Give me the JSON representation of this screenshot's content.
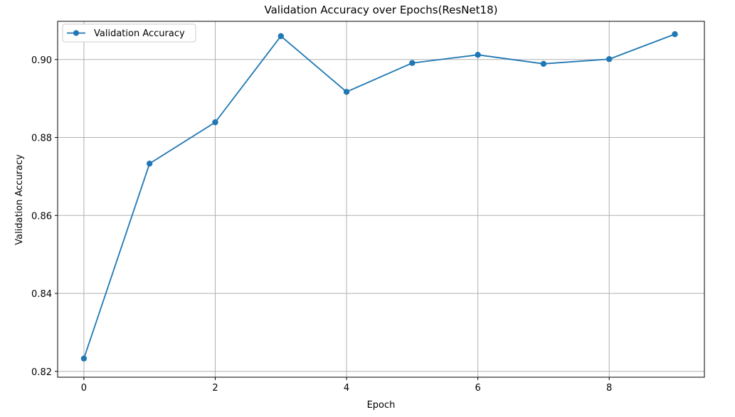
{
  "chart_data": {
    "type": "line",
    "title": "Validation Accuracy over Epochs(ResNet18)",
    "xlabel": "Epoch",
    "ylabel": "Validation Accuracy",
    "xlim": [
      -0.4,
      9.45
    ],
    "ylim": [
      0.8185,
      0.9098
    ],
    "x_ticks": [
      0,
      2,
      4,
      6,
      8
    ],
    "x_tick_labels": [
      "0",
      "2",
      "4",
      "6",
      "8"
    ],
    "y_ticks": [
      0.82,
      0.84,
      0.86,
      0.88,
      0.9
    ],
    "y_tick_labels": [
      "0.82",
      "0.84",
      "0.86",
      "0.88",
      "0.90"
    ],
    "grid": true,
    "legend_position": "upper-left",
    "series": [
      {
        "name": "Validation Accuracy",
        "color": "#1f77b4",
        "marker": "circle",
        "x": [
          0,
          1,
          2,
          3,
          4,
          5,
          6,
          7,
          8,
          9
        ],
        "y": [
          0.8233,
          0.8733,
          0.8839,
          0.906,
          0.8917,
          0.8991,
          0.9012,
          0.8989,
          0.9001,
          0.9065
        ]
      }
    ]
  }
}
